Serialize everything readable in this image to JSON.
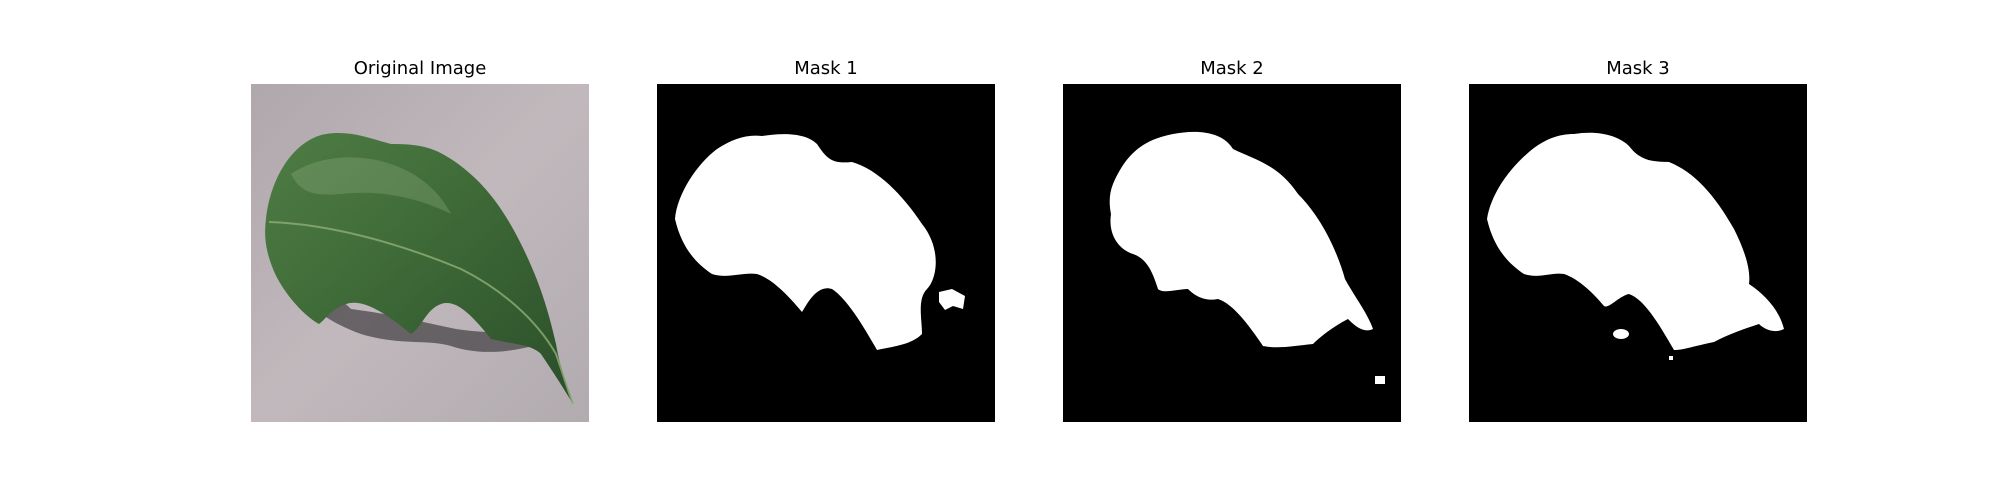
{
  "figure": {
    "background_color": "#ffffff",
    "panels": [
      {
        "title": "Original Image",
        "kind": "photo",
        "content": "green leaf on grey surface"
      },
      {
        "title": "Mask 1",
        "kind": "binary-mask"
      },
      {
        "title": "Mask 2",
        "kind": "binary-mask"
      },
      {
        "title": "Mask 3",
        "kind": "binary-mask"
      }
    ]
  },
  "colors": {
    "mask_foreground": "#ffffff",
    "mask_background": "#000000",
    "leaf_green": "#3f6b35",
    "surface_grey": "#b3aaae"
  }
}
